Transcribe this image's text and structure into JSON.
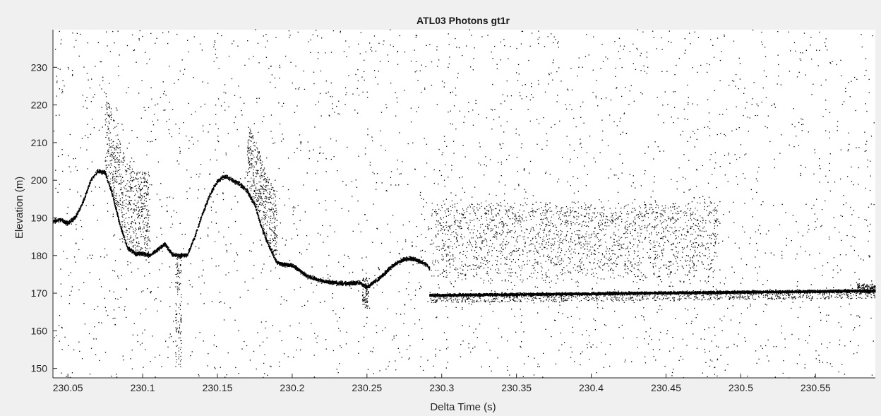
{
  "chart_data": {
    "type": "scatter",
    "title": "ATL03 Photons gt1r",
    "xlabel": "Delta Time (s)",
    "ylabel": "Elevation (m)",
    "xlim": [
      230.04,
      230.59
    ],
    "ylim": [
      147.5,
      240
    ],
    "grid": false,
    "xticks": [
      230.05,
      230.1,
      230.15,
      230.2,
      230.25,
      230.3,
      230.35,
      230.4,
      230.45,
      230.5,
      230.55
    ],
    "xtick_labels": [
      "230.05",
      "230.1",
      "230.15",
      "230.2",
      "230.25",
      "230.3",
      "230.35",
      "230.4",
      "230.45",
      "230.5",
      "230.55"
    ],
    "yticks": [
      150,
      160,
      170,
      180,
      190,
      200,
      210,
      220,
      230
    ],
    "ytick_labels": [
      "150",
      "160",
      "170",
      "180",
      "190",
      "200",
      "210",
      "220",
      "230"
    ],
    "marker_color": "#000000",
    "surface_profile": {
      "x": [
        230.04,
        230.045,
        230.05,
        230.055,
        230.06,
        230.065,
        230.07,
        230.075,
        230.08,
        230.085,
        230.09,
        230.095,
        230.1,
        230.105,
        230.11,
        230.115,
        230.12,
        230.125,
        230.13,
        230.135,
        230.14,
        230.145,
        230.15,
        230.155,
        230.16,
        230.165,
        230.17,
        230.175,
        230.18,
        230.185,
        230.19,
        230.195,
        230.2,
        230.205,
        230.21,
        230.215,
        230.22,
        230.225,
        230.23,
        230.235,
        230.24,
        230.245,
        230.25,
        230.255,
        230.26,
        230.265,
        230.27,
        230.275,
        230.28,
        230.285,
        230.29,
        230.292
      ],
      "y": [
        189,
        189.5,
        188.5,
        190,
        194,
        199.5,
        202.5,
        202,
        196,
        188,
        182,
        180.5,
        180.5,
        180,
        181.5,
        183,
        180.2,
        180,
        180.2,
        185,
        191,
        196,
        199.8,
        201,
        200,
        199,
        197,
        193.5,
        187,
        182,
        178,
        177.5,
        177.5,
        176,
        174.5,
        173.8,
        173.2,
        172.9,
        172.7,
        172.6,
        172.6,
        172.8,
        171.5,
        173,
        174.5,
        176.5,
        178,
        179,
        179.2,
        178.5,
        177.5,
        176.5
      ]
    },
    "surface_flat": {
      "x": [
        230.292,
        230.59
      ],
      "y": [
        169.4,
        170.6
      ]
    },
    "vegetation_band": {
      "x": [
        230.293,
        230.485
      ],
      "y": [
        175,
        195
      ]
    },
    "background_noise_range": [
      147.5,
      240
    ]
  }
}
